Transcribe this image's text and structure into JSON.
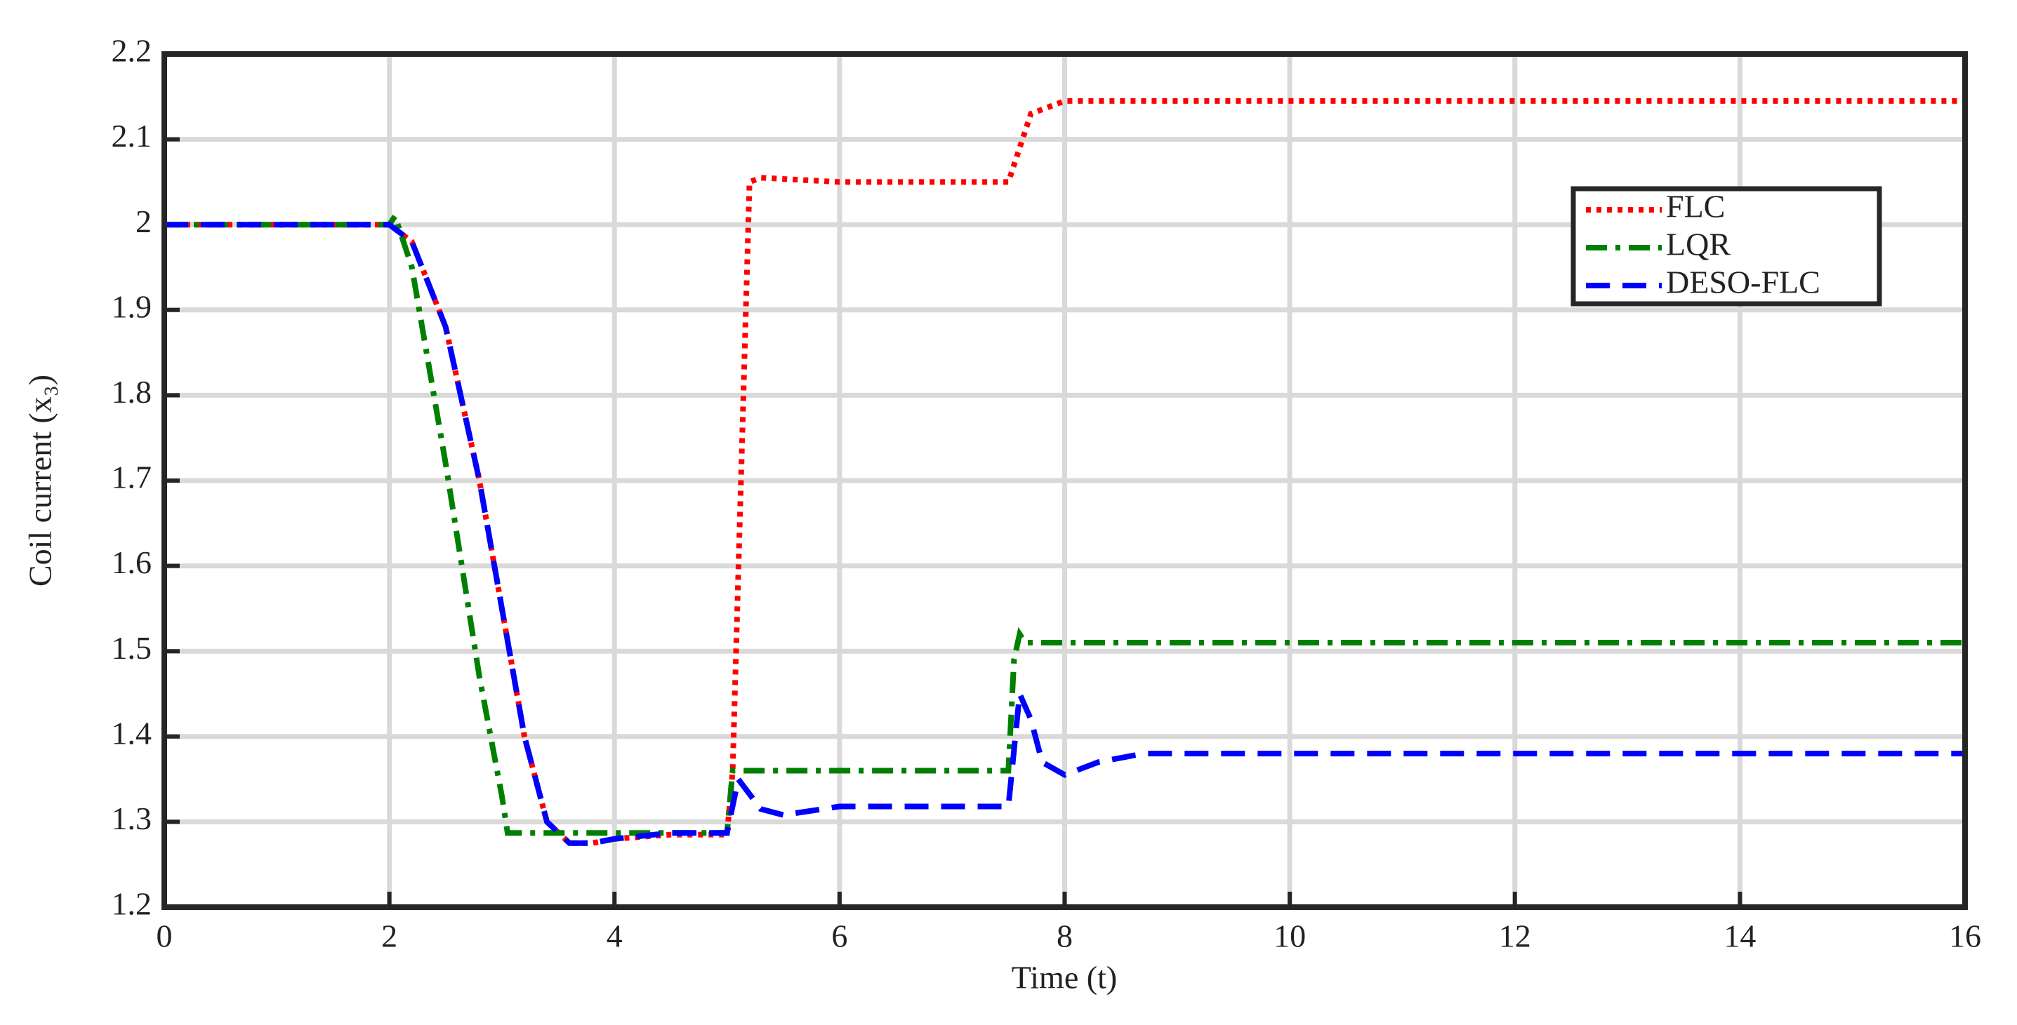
{
  "chart_data": {
    "type": "line",
    "xlabel": "Time (t)",
    "ylabel": "Coil current (x₃)",
    "xlim": [
      0,
      16
    ],
    "xticks": [
      0,
      2,
      4,
      6,
      8,
      10,
      12,
      14,
      16
    ],
    "ylim": [
      1.2,
      2.2
    ],
    "yticks": [
      1.2,
      1.3,
      1.4,
      1.5,
      1.6,
      1.7,
      1.8,
      1.9,
      2,
      2.1,
      2.2
    ],
    "grid": true,
    "legend": "upper right",
    "series": [
      {
        "name": "FLC",
        "color": "#ff0000",
        "style": "dotted",
        "x": [
          0,
          2.0,
          2.2,
          2.5,
          2.8,
          3.0,
          3.2,
          3.4,
          3.6,
          3.8,
          4.0,
          4.5,
          5.0,
          5.05,
          5.2,
          5.3,
          6,
          7.5,
          7.6,
          7.7,
          8.0,
          16
        ],
        "values": [
          2.0,
          2.0,
          1.98,
          1.88,
          1.7,
          1.55,
          1.4,
          1.3,
          1.275,
          1.275,
          1.28,
          1.285,
          1.285,
          1.36,
          2.05,
          2.055,
          2.05,
          2.05,
          2.09,
          2.13,
          2.145,
          2.145
        ]
      },
      {
        "name": "LQR",
        "color": "#008000",
        "style": "dashdot",
        "x": [
          0,
          2.0,
          2.05,
          2.2,
          2.5,
          2.8,
          3.0,
          3.05,
          5.0,
          5.05,
          7.5,
          7.55,
          7.6,
          7.65,
          16
        ],
        "values": [
          2.0,
          2.0,
          2.01,
          1.95,
          1.72,
          1.47,
          1.33,
          1.287,
          1.287,
          1.36,
          1.36,
          1.49,
          1.52,
          1.51,
          1.51
        ]
      },
      {
        "name": "DESO-FLC",
        "color": "#0000ff",
        "style": "dashed",
        "x": [
          0,
          2.0,
          2.2,
          2.5,
          2.8,
          3.0,
          3.2,
          3.4,
          3.6,
          3.8,
          4.0,
          4.5,
          5.0,
          5.1,
          5.3,
          5.5,
          6,
          7.5,
          7.6,
          7.7,
          7.8,
          8.0,
          8.3,
          8.7,
          16
        ],
        "values": [
          2.0,
          2.0,
          1.98,
          1.88,
          1.7,
          1.55,
          1.4,
          1.3,
          1.275,
          1.275,
          1.28,
          1.287,
          1.287,
          1.35,
          1.315,
          1.308,
          1.318,
          1.318,
          1.45,
          1.42,
          1.37,
          1.355,
          1.37,
          1.38,
          1.38
        ]
      }
    ]
  }
}
